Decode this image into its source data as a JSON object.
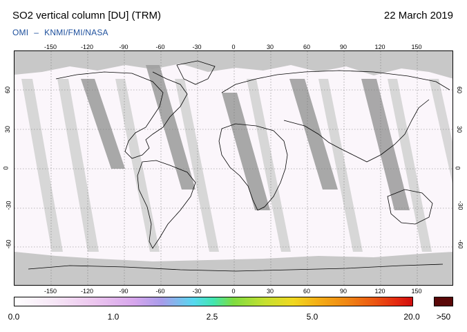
{
  "header": {
    "title": "SO2 vertical column [DU] (TRM)",
    "date": "22 March 2019",
    "credit_left": "OMI",
    "credit_sep": "–",
    "credit_right": "KNMI/FMI/NASA"
  },
  "map": {
    "lon_ticks": [
      "-150",
      "-120",
      "-90",
      "-60",
      "-30",
      "0",
      "30",
      "60",
      "90",
      "120",
      "150"
    ],
    "lat_ticks": [
      "60",
      "30",
      "0",
      "-30",
      "-60"
    ],
    "colors": {
      "no_data": "#c8c8c8",
      "satellite_gap": "#a0a0a0",
      "low_so2": "#fbf6fb",
      "coastline": "#000000"
    }
  },
  "colorbar": {
    "labels": [
      "0.0",
      "1.0",
      "2.5",
      "5.0",
      "20.0",
      ">50"
    ],
    "over_color": "#5a0808"
  }
}
